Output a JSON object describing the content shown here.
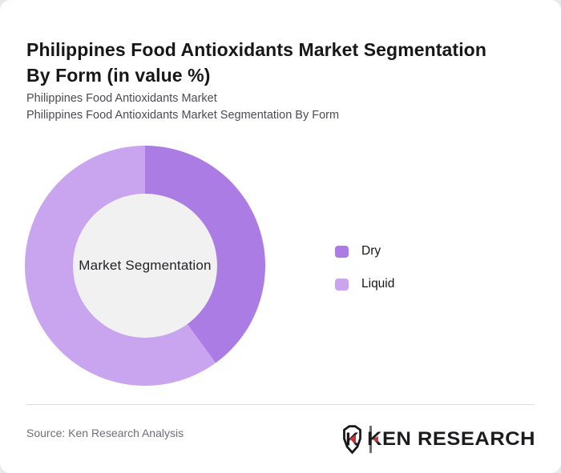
{
  "header": {
    "title": "Philippines Food Antioxidants Market Segmentation By Form (in value %)",
    "subtitle_line1": "Philippines Food Antioxidants Market",
    "subtitle_line2": "Philippines Food Antioxidants Market Segmentation By Form"
  },
  "chart_data": {
    "type": "pie",
    "donut": true,
    "title": "Philippines Food Antioxidants Market Segmentation By Form (in value %)",
    "center_label": "Market Segmentation",
    "categories": [
      "Dry",
      "Liquid"
    ],
    "values": [
      40,
      60
    ],
    "unit": "value %",
    "colors": [
      "#ab7ce4",
      "#c8a5ee"
    ],
    "hole_color": "#f1f1f2",
    "start_angle_deg": 0,
    "legend_position": "right",
    "grid": false
  },
  "footer": {
    "source": "Source: Ken Research Analysis",
    "logo": {
      "brand_text": "KEN RESEARCH",
      "shield_letter": "K",
      "accent_color": "#c4363c"
    }
  }
}
